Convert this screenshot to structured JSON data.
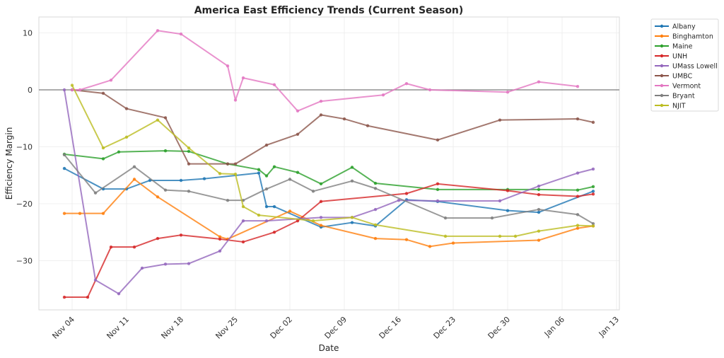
{
  "chart_data": {
    "type": "line",
    "title": "America East Efficiency Trends (Current Season)",
    "xlabel": "Date",
    "ylabel": "Efficiency Margin",
    "x_start": "2024-11-01",
    "xlim": [
      "Nov 01",
      "Jan 13"
    ],
    "ylim": [
      -38.8,
      12.5
    ],
    "x_ticks": [
      "Nov 04",
      "Nov 11",
      "Nov 18",
      "Nov 25",
      "Dec 02",
      "Dec 09",
      "Dec 16",
      "Dec 23",
      "Dec 30",
      "Jan 06",
      "Jan 13"
    ],
    "y_ticks": [
      10,
      0,
      -10,
      -20,
      -30
    ],
    "y_tick_labels": [
      "10",
      "0",
      "−10",
      "−20",
      "−30"
    ],
    "reference_line": 0,
    "grid": true,
    "legend_position": "outside-top-right",
    "series": [
      {
        "name": "Albany",
        "color": "#1f77b4",
        "x": [
          "Nov 03",
          "Nov 08",
          "Nov 11",
          "Nov 14",
          "Nov 18",
          "Nov 21",
          "Nov 28",
          "Nov 29",
          "Nov 30",
          "Dec 06",
          "Dec 10",
          "Dec 13",
          "Dec 17",
          "Dec 21",
          "Dec 30",
          "Jan 03",
          "Jan 10"
        ],
        "values": [
          -13.8,
          -17.4,
          -17.4,
          -15.9,
          -15.9,
          -15.6,
          -14.6,
          -20.5,
          -20.5,
          -24.1,
          -23.3,
          -23.9,
          -19.3,
          -19.6,
          -21.2,
          -21.5,
          -17.8
        ]
      },
      {
        "name": "Binghamton",
        "color": "#ff7f0e",
        "x": [
          "Nov 03",
          "Nov 05",
          "Nov 08",
          "Nov 12",
          "Nov 15",
          "Nov 23",
          "Nov 24",
          "Dec 02",
          "Dec 06",
          "Dec 13",
          "Dec 17",
          "Dec 20",
          "Dec 23",
          "Jan 03",
          "Jan 08",
          "Jan 10"
        ],
        "values": [
          -21.7,
          -21.7,
          -21.7,
          -15.7,
          -18.8,
          -25.8,
          -26.2,
          -21.3,
          -23.8,
          -26.1,
          -26.3,
          -27.5,
          -26.9,
          -26.4,
          -24.3,
          -23.9
        ]
      },
      {
        "name": "Maine",
        "color": "#2ca02c",
        "x": [
          "Nov 03",
          "Nov 08",
          "Nov 10",
          "Nov 16",
          "Nov 19",
          "Nov 24",
          "Nov 28",
          "Nov 29",
          "Nov 30",
          "Dec 03",
          "Dec 06",
          "Dec 10",
          "Dec 13",
          "Dec 21",
          "Dec 30",
          "Jan 03",
          "Jan 08",
          "Jan 10"
        ],
        "values": [
          -11.3,
          -12.1,
          -10.9,
          -10.7,
          -10.8,
          -13.0,
          -14.0,
          -15.1,
          -13.5,
          -14.5,
          -16.5,
          -13.6,
          -16.4,
          -17.5,
          -17.5,
          -17.5,
          -17.6,
          -17.0
        ]
      },
      {
        "name": "UNH",
        "color": "#d62728",
        "x": [
          "Nov 03",
          "Nov 06",
          "Nov 09",
          "Nov 12",
          "Nov 15",
          "Nov 18",
          "Nov 23",
          "Nov 26",
          "Nov 30",
          "Dec 03",
          "Dec 06",
          "Dec 17",
          "Dec 21",
          "Dec 30",
          "Jan 03",
          "Jan 08",
          "Jan 10"
        ],
        "values": [
          -36.4,
          -36.4,
          -27.6,
          -27.6,
          -26.1,
          -25.5,
          -26.2,
          -26.7,
          -25.0,
          -23.0,
          -19.6,
          -18.2,
          -16.5,
          -17.7,
          -18.4,
          -18.7,
          -18.3
        ]
      },
      {
        "name": "UMass Lowell",
        "color": "#9467bd",
        "x": [
          "Nov 03",
          "Nov 07",
          "Nov 10",
          "Nov 13",
          "Nov 16",
          "Nov 19",
          "Nov 23",
          "Nov 26",
          "Nov 29",
          "Dec 06",
          "Dec 10",
          "Dec 13",
          "Dec 16",
          "Dec 21",
          "Dec 29",
          "Jan 03",
          "Jan 08",
          "Jan 10"
        ],
        "values": [
          0.0,
          -33.4,
          -35.8,
          -31.3,
          -30.6,
          -30.5,
          -28.3,
          -23.0,
          -23.0,
          -22.4,
          -22.4,
          -21.0,
          -19.4,
          -19.5,
          -19.5,
          -16.9,
          -14.6,
          -13.9
        ]
      },
      {
        "name": "UMBC",
        "color": "#8c564b",
        "x": [
          "Nov 04",
          "Nov 08",
          "Nov 11",
          "Nov 16",
          "Nov 19",
          "Nov 24",
          "Nov 25",
          "Nov 29",
          "Dec 03",
          "Dec 06",
          "Dec 09",
          "Dec 12",
          "Dec 21",
          "Dec 29",
          "Jan 08",
          "Jan 10"
        ],
        "values": [
          0.0,
          -0.6,
          -3.3,
          -4.9,
          -13.0,
          -13.0,
          -13.0,
          -9.7,
          -7.8,
          -4.4,
          -5.1,
          -6.3,
          -8.8,
          -5.3,
          -5.1,
          -5.7
        ]
      },
      {
        "name": "Vermont",
        "color": "#e377c2",
        "x": [
          "Nov 04",
          "Nov 05",
          "Nov 09",
          "Nov 15",
          "Nov 18",
          "Nov 24",
          "Nov 25",
          "Nov 26",
          "Nov 30",
          "Dec 03",
          "Dec 06",
          "Dec 14",
          "Dec 17",
          "Dec 20",
          "Dec 30",
          "Jan 03",
          "Jan 08"
        ],
        "values": [
          0.0,
          0.0,
          1.7,
          10.4,
          9.8,
          4.2,
          -1.8,
          2.1,
          0.9,
          -3.7,
          -2.0,
          -0.9,
          1.1,
          0.0,
          -0.4,
          1.4,
          0.6
        ]
      },
      {
        "name": "Bryant",
        "color": "#7f7f7f",
        "x": [
          "Nov 03",
          "Nov 07",
          "Nov 12",
          "Nov 16",
          "Nov 19",
          "Nov 24",
          "Nov 26",
          "Nov 29",
          "Dec 02",
          "Dec 05",
          "Dec 10",
          "Dec 13",
          "Dec 22",
          "Dec 28",
          "Jan 03",
          "Jan 08",
          "Jan 10"
        ],
        "values": [
          -11.4,
          -18.1,
          -13.5,
          -17.6,
          -17.8,
          -19.4,
          -19.4,
          -17.4,
          -15.7,
          -17.8,
          -16.0,
          -17.3,
          -22.5,
          -22.5,
          -21.0,
          -21.9,
          -23.5
        ]
      },
      {
        "name": "NJIT",
        "color": "#bcbd22",
        "x": [
          "Nov 04",
          "Nov 08",
          "Nov 11",
          "Nov 15",
          "Nov 19",
          "Nov 23",
          "Nov 25",
          "Nov 26",
          "Nov 28",
          "Dec 05",
          "Dec 10",
          "Dec 13",
          "Dec 22",
          "Dec 29",
          "Dec 31",
          "Jan 03",
          "Jan 08",
          "Jan 10"
        ],
        "values": [
          0.8,
          -10.2,
          -8.3,
          -5.3,
          -10.2,
          -14.7,
          -14.8,
          -20.5,
          -22.0,
          -23.0,
          -22.4,
          -23.7,
          -25.7,
          -25.7,
          -25.7,
          -24.8,
          -23.8,
          -23.9
        ]
      }
    ]
  }
}
